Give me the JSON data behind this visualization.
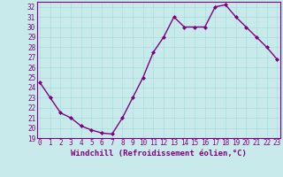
{
  "x": [
    0,
    1,
    2,
    3,
    4,
    5,
    6,
    7,
    8,
    9,
    10,
    11,
    12,
    13,
    14,
    15,
    16,
    17,
    18,
    19,
    20,
    21,
    22,
    23
  ],
  "y": [
    24.5,
    23.0,
    21.5,
    21.0,
    20.2,
    19.8,
    19.5,
    19.4,
    21.0,
    23.0,
    25.0,
    27.5,
    29.0,
    31.0,
    30.0,
    30.0,
    30.0,
    32.0,
    32.2,
    31.0,
    30.0,
    29.0,
    28.0,
    26.8
  ],
  "line_color": "#800080",
  "marker": "D",
  "marker_size": 2.0,
  "linewidth": 1.0,
  "xlabel": "Windchill (Refroidissement éolien,°C)",
  "xlabel_fontsize": 6.5,
  "ylabel": "",
  "title": "",
  "xlim": [
    -0.3,
    23.3
  ],
  "ylim": [
    19,
    32.5
  ],
  "yticks": [
    19,
    20,
    21,
    22,
    23,
    24,
    25,
    26,
    27,
    28,
    29,
    30,
    31,
    32
  ],
  "xticks": [
    0,
    1,
    2,
    3,
    4,
    5,
    6,
    7,
    8,
    9,
    10,
    11,
    12,
    13,
    14,
    15,
    16,
    17,
    18,
    19,
    20,
    21,
    22,
    23
  ],
  "grid_color": "#a8dede",
  "bg_color": "#c8eaea",
  "tick_color": "#800080",
  "tick_fontsize": 5.5,
  "xlabel_color": "#800080",
  "spine_color": "#800080"
}
